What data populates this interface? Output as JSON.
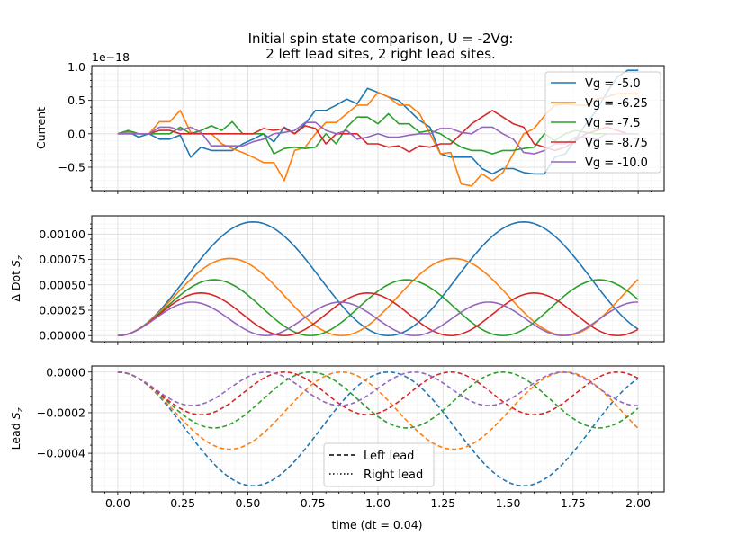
{
  "figure": {
    "title_line1": "Initial spin state comparison, U = -2Vg:",
    "title_line2": "2 left lead sites, 2 right lead sites.",
    "xlabel": "time (dt = 0.04)",
    "colors": {
      "Vg = -5.0": "#1f77b4",
      "Vg = -6.25": "#ff7f0e",
      "Vg = -7.5": "#2ca02c",
      "Vg = -8.75": "#d62728",
      "Vg = -10.0": "#9467bd"
    }
  },
  "chart_data": [
    {
      "type": "line",
      "panel": "current",
      "ylabel": "Current",
      "offset_text": "1e−18",
      "xlim": [
        -0.1,
        2.1
      ],
      "ylim": [
        -0.85,
        1.02
      ],
      "x_ticks": [
        "0.00",
        "0.25",
        "0.50",
        "0.75",
        "1.00",
        "1.25",
        "1.50",
        "1.75",
        "2.00"
      ],
      "y_ticks": [
        "−0.5",
        "0.0",
        "0.5",
        "1.0"
      ],
      "y_tick_values": [
        -0.5,
        0.0,
        0.5,
        1.0
      ],
      "grid": true,
      "legend_position": "upper-right",
      "x": [
        0.0,
        0.04,
        0.08,
        0.12,
        0.16,
        0.2,
        0.24,
        0.28,
        0.32,
        0.36,
        0.4,
        0.44,
        0.48,
        0.52,
        0.56,
        0.6,
        0.64,
        0.68,
        0.72,
        0.76,
        0.8,
        0.84,
        0.88,
        0.92,
        0.96,
        1.0,
        1.04,
        1.08,
        1.12,
        1.16,
        1.2,
        1.24,
        1.28,
        1.32,
        1.36,
        1.4,
        1.44,
        1.48,
        1.52,
        1.56,
        1.6,
        1.64,
        1.68,
        1.72,
        1.76,
        1.8,
        1.84,
        1.88,
        1.92,
        1.96,
        2.0
      ],
      "series": [
        {
          "name": "Vg = -5.0",
          "values": [
            0.0,
            0.03,
            -0.05,
            0.0,
            -0.08,
            -0.08,
            -0.02,
            -0.35,
            -0.2,
            -0.25,
            -0.25,
            -0.25,
            -0.15,
            -0.08,
            0.0,
            -0.12,
            0.1,
            0.0,
            0.15,
            0.35,
            0.35,
            0.43,
            0.52,
            0.45,
            0.68,
            0.62,
            0.55,
            0.5,
            0.35,
            0.2,
            0.1,
            -0.3,
            -0.35,
            -0.35,
            -0.35,
            -0.52,
            -0.6,
            -0.52,
            -0.52,
            -0.58,
            -0.6,
            -0.6,
            -0.35,
            -0.3,
            -0.08,
            0.15,
            0.35,
            0.62,
            0.85,
            0.95,
            0.95
          ]
        },
        {
          "name": "Vg = -6.25",
          "values": [
            0.0,
            0.02,
            0.0,
            0.0,
            0.18,
            0.18,
            0.35,
            0.02,
            0.0,
            0.0,
            -0.15,
            -0.22,
            -0.28,
            -0.35,
            -0.43,
            -0.43,
            -0.7,
            -0.25,
            -0.2,
            0.0,
            0.17,
            0.17,
            0.3,
            0.43,
            0.43,
            0.62,
            0.55,
            0.43,
            0.43,
            0.3,
            0.0,
            -0.3,
            -0.28,
            -0.75,
            -0.78,
            -0.6,
            -0.7,
            -0.58,
            -0.3,
            0.0,
            0.08,
            0.27,
            0.43,
            0.45,
            0.43,
            0.43,
            0.52,
            0.55,
            0.6,
            0.6,
            0.6
          ]
        },
        {
          "name": "Vg = -7.5",
          "values": [
            0.0,
            0.05,
            0.0,
            0.0,
            0.0,
            0.0,
            0.1,
            0.0,
            0.05,
            0.12,
            0.05,
            0.18,
            0.0,
            0.0,
            0.0,
            -0.3,
            -0.22,
            -0.2,
            -0.22,
            -0.2,
            0.0,
            -0.15,
            0.1,
            0.25,
            0.25,
            0.15,
            0.3,
            0.15,
            0.15,
            0.02,
            0.05,
            0.0,
            -0.1,
            -0.2,
            -0.25,
            -0.25,
            -0.3,
            -0.25,
            -0.25,
            -0.22,
            -0.2,
            0.0,
            -0.1,
            0.0,
            0.05,
            0.02,
            0.0,
            0.0,
            0.0,
            0.0,
            0.0
          ]
        },
        {
          "name": "Vg = -8.75",
          "values": [
            0.0,
            0.0,
            0.0,
            0.0,
            0.05,
            0.05,
            0.0,
            0.0,
            0.0,
            0.0,
            0.0,
            0.0,
            0.0,
            0.0,
            0.08,
            0.05,
            0.08,
            0.0,
            0.12,
            0.08,
            -0.15,
            0.0,
            0.0,
            0.0,
            -0.15,
            -0.15,
            -0.2,
            -0.18,
            -0.27,
            -0.18,
            -0.2,
            -0.15,
            -0.15,
            0.0,
            0.15,
            0.25,
            0.35,
            0.25,
            0.15,
            0.1,
            -0.15,
            -0.2,
            -0.25,
            -0.2,
            -0.1,
            0.0,
            0.05,
            0.1,
            0.05,
            0.0,
            0.0
          ]
        },
        {
          "name": "Vg = -10.0",
          "values": [
            0.0,
            0.0,
            0.0,
            0.0,
            0.1,
            0.1,
            0.05,
            0.1,
            0.02,
            -0.18,
            -0.18,
            -0.18,
            -0.18,
            -0.12,
            -0.08,
            0.0,
            0.02,
            0.05,
            0.17,
            0.17,
            0.05,
            0.0,
            0.05,
            -0.08,
            -0.05,
            0.0,
            -0.05,
            -0.05,
            -0.02,
            0.0,
            0.0,
            0.08,
            0.08,
            0.02,
            0.0,
            0.1,
            0.1,
            0.0,
            -0.08,
            -0.28,
            -0.3,
            -0.25,
            -0.15,
            -0.15,
            -0.05,
            -0.05,
            -0.08,
            0.0,
            0.0,
            0.0,
            0.0
          ]
        }
      ]
    },
    {
      "type": "line",
      "panel": "dot_sz",
      "ylabel": "Δ Dot S_z",
      "xlim": [
        -0.1,
        2.1
      ],
      "ylim": [
        -6e-05,
        0.00118
      ],
      "y_ticks": [
        "0.00000",
        "0.00025",
        "0.00050",
        "0.00075",
        "0.00100"
      ],
      "y_tick_values": [
        0.0,
        0.00025,
        0.0005,
        0.00075,
        0.001
      ],
      "grid": true,
      "series": [
        {
          "name": "Vg = -5.0",
          "amplitude": 0.00112,
          "period": 1.04
        },
        {
          "name": "Vg = -6.25",
          "amplitude": 0.00076,
          "period": 0.86
        },
        {
          "name": "Vg = -7.5",
          "amplitude": 0.00055,
          "period": 0.74
        },
        {
          "name": "Vg = -8.75",
          "amplitude": 0.00042,
          "period": 0.64
        },
        {
          "name": "Vg = -10.0",
          "amplitude": 0.00033,
          "period": 0.57
        }
      ]
    },
    {
      "type": "line",
      "panel": "lead_sz",
      "ylabel": "Lead S_z",
      "xlim": [
        -0.1,
        2.1
      ],
      "ylim": [
        -0.00059,
        3e-05
      ],
      "y_ticks": [
        "−0.0004",
        "−0.0002",
        "0.0000"
      ],
      "y_tick_values": [
        -0.0004,
        -0.0002,
        0.0
      ],
      "grid": true,
      "legend_position": "lower-center",
      "legend": [
        {
          "label": "Left lead",
          "style": "dashed"
        },
        {
          "label": "Right lead",
          "style": "dotted"
        }
      ],
      "series": [
        {
          "name": "Vg = -5.0",
          "amplitude": -0.00056,
          "period": 1.04
        },
        {
          "name": "Vg = -6.25",
          "amplitude": -0.00038,
          "period": 0.86
        },
        {
          "name": "Vg = -7.5",
          "amplitude": -0.000275,
          "period": 0.74
        },
        {
          "name": "Vg = -8.75",
          "amplitude": -0.00021,
          "period": 0.64
        },
        {
          "name": "Vg = -10.0",
          "amplitude": -0.000165,
          "period": 0.57
        }
      ]
    }
  ]
}
